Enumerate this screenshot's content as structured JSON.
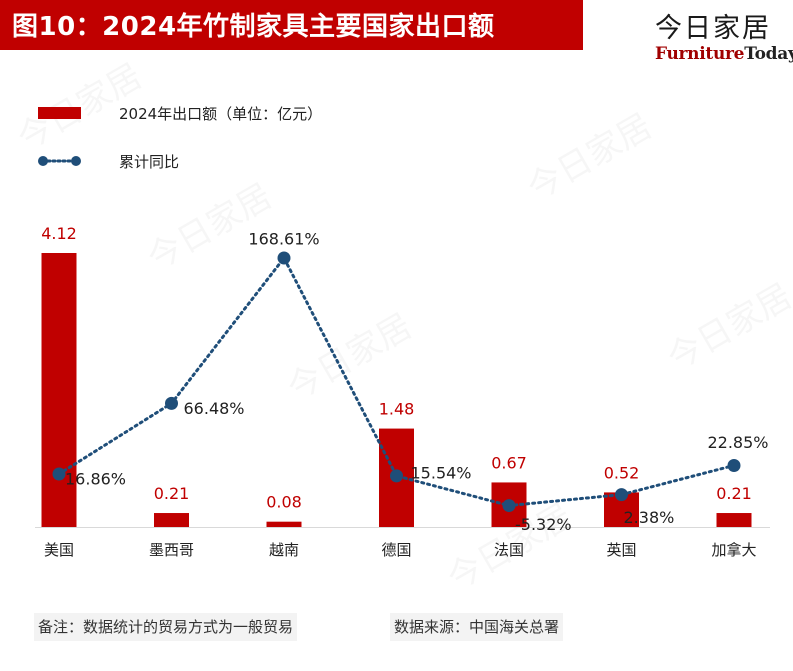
{
  "title": "图10：2024年竹制家具主要国家出口额",
  "brand": {
    "cn": "今日家居",
    "en_a": "Furniture",
    "en_b": "Today",
    "accent": "#c00000"
  },
  "legend": {
    "bar_label": "2024年出口额（单位：亿元）",
    "line_label": "累计同比"
  },
  "footnotes": {
    "left": "备注：数据统计的贸易方式为一般贸易",
    "right": "数据来源：中国海关总署"
  },
  "chart_data": {
    "type": "bar",
    "title": "2024年竹制家具主要国家出口额",
    "categories": [
      "美国",
      "墨西哥",
      "越南",
      "德国",
      "法国",
      "英国",
      "加拿大"
    ],
    "series": [
      {
        "name": "2024年出口额（单位：亿元）",
        "type": "bar",
        "color": "#c00000",
        "values": [
          4.12,
          0.21,
          0.08,
          1.48,
          0.67,
          0.52,
          0.21
        ],
        "labels": [
          "4.12",
          "0.21",
          "0.08",
          "1.48",
          "0.67",
          "0.52",
          "0.21"
        ]
      },
      {
        "name": "累计同比",
        "type": "line",
        "color": "#1f4e79",
        "style": "dotted",
        "values": [
          16.86,
          66.48,
          168.61,
          15.54,
          -5.32,
          2.38,
          22.85
        ],
        "labels": [
          "16.86%",
          "66.48%",
          "168.61%",
          "15.54%",
          "-5.32%",
          "2.38%",
          "22.85%"
        ]
      }
    ],
    "bar_ylim": [
      0,
      4.5
    ],
    "line_ylim": [
      -20,
      180
    ],
    "legend_position": "top-left"
  }
}
